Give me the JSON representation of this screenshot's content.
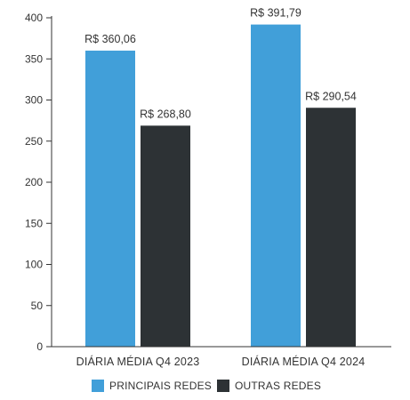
{
  "chart_data": {
    "type": "bar",
    "categories": [
      "DIÁRIA MÉDIA Q4 2023",
      "DIÁRIA MÉDIA Q4 2024"
    ],
    "series": [
      {
        "name": "PRINCIPAIS REDES",
        "color": "#419fd9",
        "values": [
          360.06,
          391.79
        ],
        "labels": [
          "R$ 360,06",
          "R$ 391,79"
        ]
      },
      {
        "name": "OUTRAS REDES",
        "color": "#2d3235",
        "values": [
          268.8,
          290.54
        ],
        "labels": [
          "R$ 268,80",
          "R$ 290,54"
        ]
      }
    ],
    "ylim": [
      0,
      400
    ],
    "yticks": [
      0,
      50,
      100,
      150,
      200,
      250,
      300,
      350,
      400
    ],
    "legend_position": "bottom-center",
    "grid": false
  }
}
